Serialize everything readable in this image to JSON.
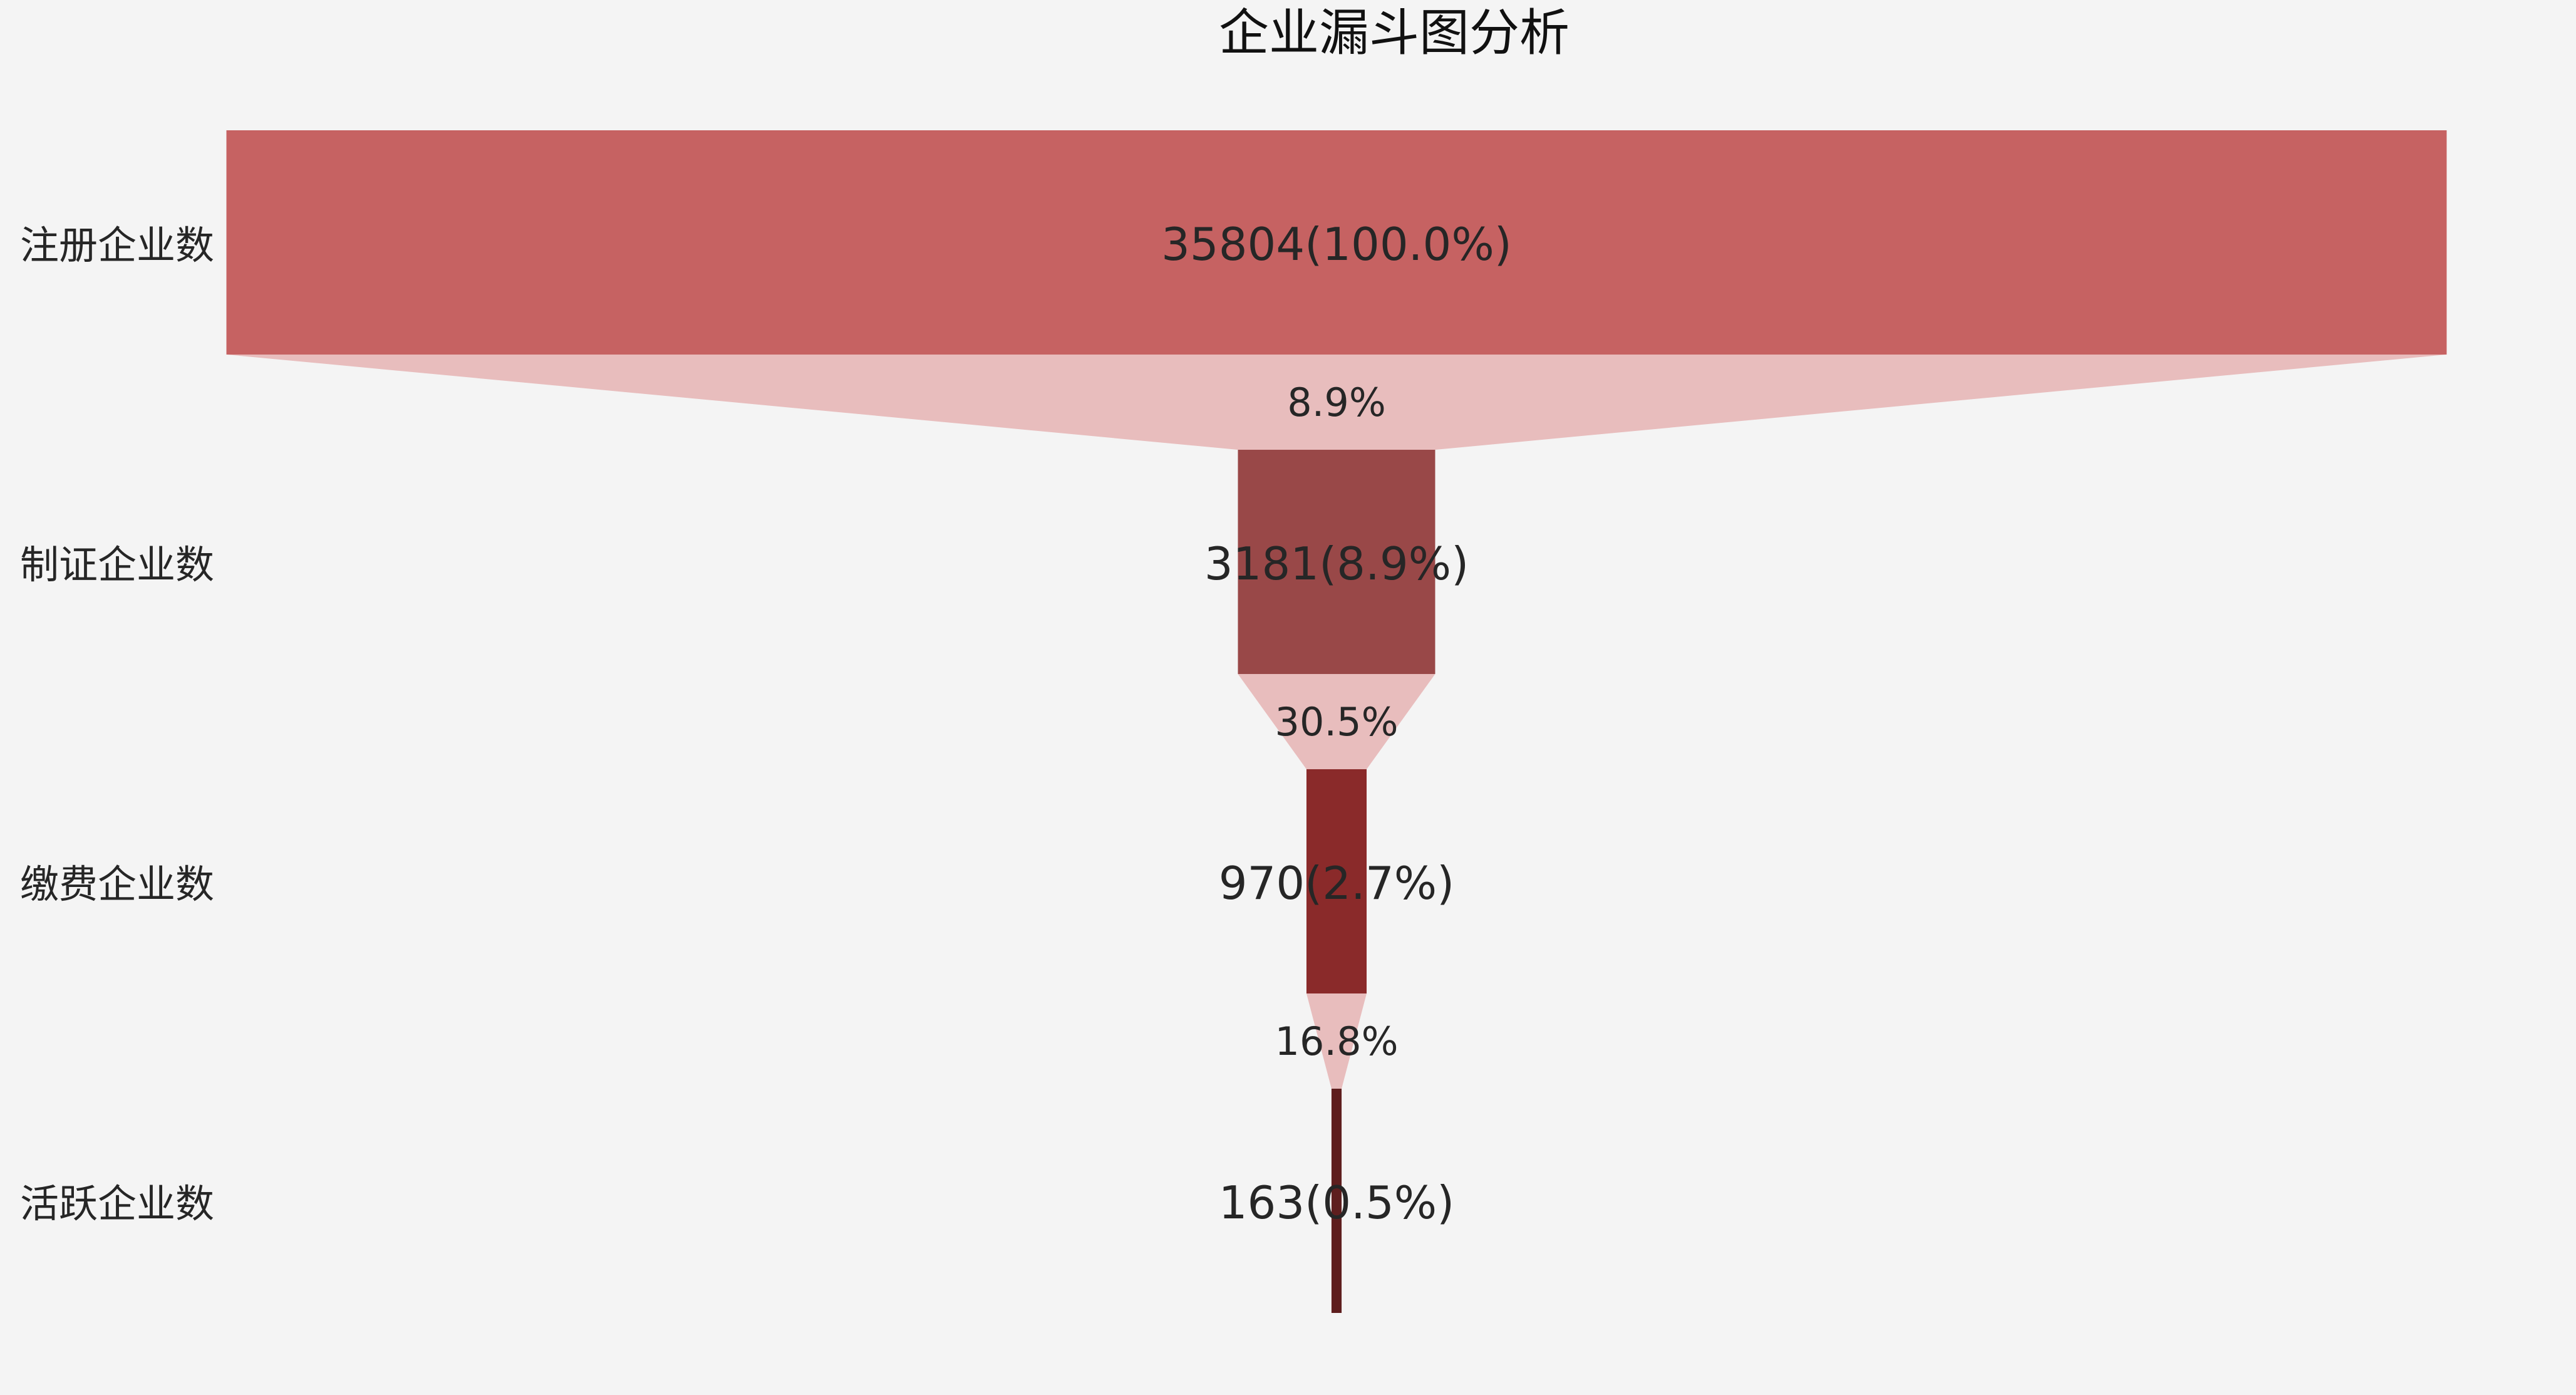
{
  "chart_data": {
    "type": "funnel",
    "title": "企业漏斗图分析",
    "stages": [
      {
        "label": "注册企业数",
        "value": 35804,
        "value_label": "35804(100.0%)",
        "color": "#c66262"
      },
      {
        "label": "制证企业数",
        "value": 3181,
        "value_label": "3181(8.9%)",
        "color": "#994848"
      },
      {
        "label": "缴费企业数",
        "value": 970,
        "value_label": "970(2.7%)",
        "color": "#8a2a2a"
      },
      {
        "label": "活跃企业数",
        "value": 163,
        "value_label": "163(0.5%)",
        "color": "#5e1e1e"
      }
    ],
    "conversions": [
      {
        "value": 8.9,
        "label": "8.9%"
      },
      {
        "value": 30.5,
        "label": "30.5%"
      },
      {
        "value": 16.8,
        "label": "16.8%"
      }
    ],
    "connector_color": "#e8bdbd",
    "background": "#f4f4f4",
    "text_color": "#262626"
  }
}
